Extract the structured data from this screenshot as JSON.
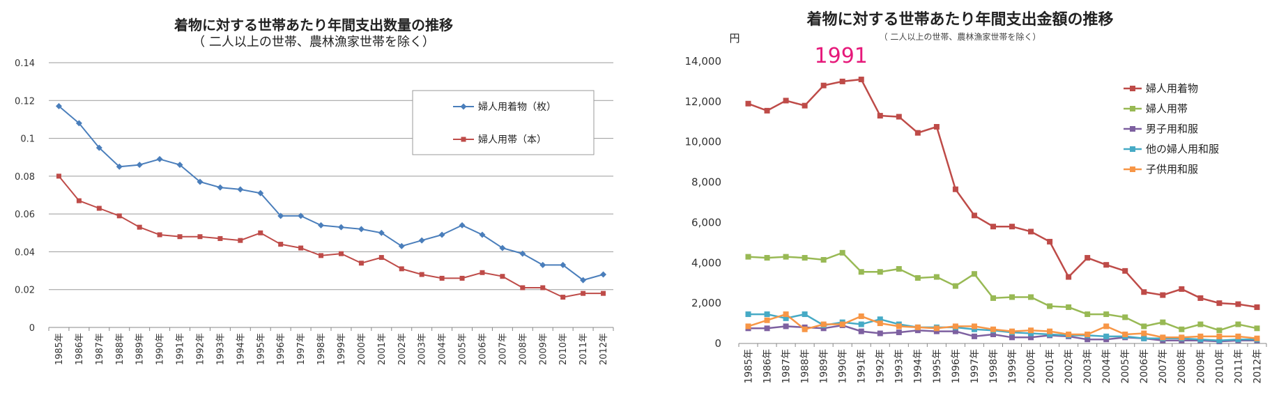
{
  "chart_data": [
    {
      "type": "line",
      "title": "着物に対する世帯あたり年間支出数量の推移",
      "subtitle": "（ 二人以上の世帯、農林漁家世帯を除く）",
      "categories": [
        "1985年",
        "1986年",
        "1987年",
        "1988年",
        "1989年",
        "1990年",
        "1991年",
        "1992年",
        "1993年",
        "1994年",
        "1995年",
        "1996年",
        "1997年",
        "1998年",
        "1999年",
        "2000年",
        "2001年",
        "2002年",
        "2003年",
        "2004年",
        "2005年",
        "2006年",
        "2007年",
        "2008年",
        "2009年",
        "2010年",
        "2011年",
        "2012年"
      ],
      "ylim": [
        0,
        0.14
      ],
      "yticks": [
        "0",
        "0.02",
        "0.04",
        "0.06",
        "0.08",
        "0.1",
        "0.12",
        "0.14"
      ],
      "grid": true,
      "legend_position": "top-right",
      "series": [
        {
          "name": "婦人用着物（枚）",
          "color": "#4a7ebb",
          "marker": "diamond",
          "values": [
            0.117,
            0.108,
            0.095,
            0.085,
            0.086,
            0.089,
            0.086,
            0.077,
            0.074,
            0.073,
            0.071,
            0.059,
            0.059,
            0.054,
            0.053,
            0.052,
            0.05,
            0.043,
            0.046,
            0.049,
            0.054,
            0.049,
            0.042,
            0.039,
            0.033,
            0.033,
            0.025,
            0.028
          ]
        },
        {
          "name": "婦人用帯（本）",
          "color": "#be4b48",
          "marker": "square",
          "values": [
            0.08,
            0.067,
            0.063,
            0.059,
            0.053,
            0.049,
            0.048,
            0.048,
            0.047,
            0.046,
            0.05,
            0.044,
            0.042,
            0.038,
            0.039,
            0.034,
            0.037,
            0.031,
            0.028,
            0.026,
            0.026,
            0.029,
            0.027,
            0.021,
            0.021,
            0.016,
            0.018,
            0.018
          ]
        }
      ]
    },
    {
      "type": "line",
      "title": "着物に対する世帯あたり年間支出金額の推移",
      "subtitle": "（ 二人以上の世帯、農林漁家世帯を除く）",
      "ylabel": "円",
      "annotation": "1991",
      "annotation_color": "#e6197a",
      "categories": [
        "1985年",
        "1986年",
        "1987年",
        "1988年",
        "1989年",
        "1990年",
        "1991年",
        "1992年",
        "1993年",
        "1994年",
        "1995年",
        "1996年",
        "1997年",
        "1998年",
        "1999年",
        "2000年",
        "2001年",
        "2002年",
        "2003年",
        "2004年",
        "2005年",
        "2006年",
        "2007年",
        "2008年",
        "2009年",
        "2010年",
        "2011年",
        "2012年"
      ],
      "ylim": [
        0,
        14000
      ],
      "yticks": [
        "0",
        "2,000",
        "4,000",
        "6,000",
        "8,000",
        "10,000",
        "12,000",
        "14,000"
      ],
      "grid": false,
      "legend_position": "top-right",
      "series": [
        {
          "name": "婦人用着物",
          "color": "#be4b48",
          "values": [
            11900,
            11550,
            12050,
            11800,
            12800,
            13000,
            13100,
            11300,
            11250,
            10450,
            10750,
            7650,
            6350,
            5800,
            5800,
            5550,
            5050,
            3300,
            4250,
            3900,
            3600,
            2550,
            2400,
            2700,
            2250,
            2000,
            1950,
            1800
          ]
        },
        {
          "name": "婦人用帯",
          "color": "#98b954",
          "values": [
            4300,
            4250,
            4300,
            4250,
            4150,
            4500,
            3550,
            3550,
            3700,
            3250,
            3300,
            2850,
            3450,
            2250,
            2300,
            2300,
            1850,
            1800,
            1450,
            1450,
            1300,
            850,
            1050,
            700,
            950,
            650,
            950,
            750
          ]
        },
        {
          "name": "男子用和服",
          "color": "#7d60a0",
          "values": [
            750,
            750,
            850,
            800,
            750,
            900,
            600,
            500,
            550,
            650,
            600,
            600,
            350,
            450,
            300,
            300,
            400,
            350,
            200,
            200,
            300,
            250,
            150,
            150,
            150,
            100,
            150,
            150
          ]
        },
        {
          "name": "他の婦人用和服",
          "color": "#46aac5",
          "values": [
            1450,
            1450,
            1250,
            1450,
            900,
            1050,
            950,
            1200,
            950,
            800,
            800,
            800,
            700,
            650,
            550,
            500,
            450,
            400,
            400,
            350,
            350,
            250,
            250,
            250,
            200,
            150,
            200,
            200
          ]
        },
        {
          "name": "子供用和服",
          "color": "#f79646",
          "values": [
            850,
            1150,
            1450,
            700,
            950,
            950,
            1350,
            1000,
            850,
            800,
            750,
            850,
            850,
            700,
            600,
            650,
            600,
            450,
            450,
            850,
            450,
            500,
            300,
            300,
            350,
            350,
            350,
            250
          ]
        }
      ]
    }
  ]
}
